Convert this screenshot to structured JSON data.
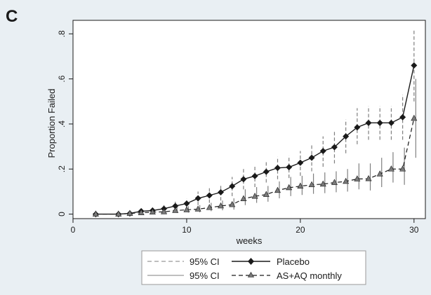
{
  "panel_label": "C",
  "colors": {
    "background": "#e9eff3",
    "plot_background": "#ffffff",
    "line": "#1a1a1a",
    "ci": "#7f7f7f"
  },
  "legend": {
    "entries": [
      {
        "label": "95% CI",
        "style": "dashed-gray"
      },
      {
        "label": "Placebo",
        "style": "solid-diamond"
      },
      {
        "label": "95% CI",
        "style": "solid-gray"
      },
      {
        "label": "AS+AQ monthly",
        "style": "dashed-triangle"
      }
    ]
  },
  "chart_data": {
    "type": "line",
    "title": "",
    "xlabel": "weeks",
    "ylabel": "Proportion Failed",
    "xlim": [
      0,
      31
    ],
    "ylim": [
      -0.02,
      0.86
    ],
    "xticks": [
      0,
      10,
      20,
      30
    ],
    "xtick_labels": [
      "0",
      "10",
      "20",
      "30"
    ],
    "yticks": [
      0,
      0.2,
      0.4,
      0.6,
      0.8
    ],
    "ytick_labels": [
      "0",
      ".2",
      ".4",
      ".6",
      ".8"
    ],
    "grid": false,
    "legend_position": "bottom",
    "series": [
      {
        "name": "Placebo",
        "marker": "diamond",
        "line": "solid",
        "x": [
          2,
          4,
          5,
          6,
          7,
          8,
          9,
          10,
          11,
          12,
          13,
          14,
          15,
          16,
          17,
          18,
          19,
          20,
          21,
          22,
          23,
          24,
          25,
          26,
          27,
          28,
          29,
          30
        ],
        "y": [
          0,
          0,
          0.003,
          0.013,
          0.016,
          0.024,
          0.036,
          0.047,
          0.07,
          0.083,
          0.097,
          0.124,
          0.155,
          0.169,
          0.188,
          0.205,
          0.208,
          0.228,
          0.25,
          0.28,
          0.297,
          0.345,
          0.385,
          0.405,
          0.405,
          0.405,
          0.43,
          0.66
        ],
        "ci_x": [
          6,
          7,
          8,
          9,
          10,
          11,
          12,
          13,
          14,
          15,
          16,
          17,
          18,
          19,
          20,
          21,
          22,
          23,
          24,
          25,
          26,
          27,
          28,
          29,
          30
        ],
        "ci_lower": [
          0.003,
          0.005,
          0.01,
          0.015,
          0.02,
          0.04,
          0.05,
          0.06,
          0.08,
          0.11,
          0.12,
          0.14,
          0.155,
          0.16,
          0.17,
          0.19,
          0.21,
          0.225,
          0.27,
          0.31,
          0.33,
          0.33,
          0.33,
          0.33,
          0.5
        ],
        "ci_upper": [
          0.025,
          0.03,
          0.04,
          0.055,
          0.07,
          0.1,
          0.115,
          0.13,
          0.165,
          0.2,
          0.215,
          0.235,
          0.255,
          0.26,
          0.28,
          0.31,
          0.345,
          0.365,
          0.42,
          0.47,
          0.48,
          0.48,
          0.48,
          0.53,
          0.82
        ]
      },
      {
        "name": "AS+AQ monthly",
        "marker": "triangle",
        "line": "dashed",
        "x": [
          2,
          4,
          5,
          6,
          7,
          8,
          9,
          10,
          11,
          12,
          13,
          14,
          15,
          16,
          17,
          18,
          19,
          20,
          21,
          22,
          23,
          24,
          25,
          26,
          27,
          28,
          29,
          30
        ],
        "y": [
          0,
          0,
          0.003,
          0.006,
          0.009,
          0.01,
          0.016,
          0.019,
          0.022,
          0.029,
          0.036,
          0.042,
          0.068,
          0.079,
          0.087,
          0.105,
          0.117,
          0.124,
          0.13,
          0.133,
          0.14,
          0.145,
          0.156,
          0.157,
          0.178,
          0.2,
          0.2,
          0.425
        ],
        "ci_x": [
          9,
          10,
          11,
          12,
          13,
          14,
          15,
          16,
          17,
          18,
          19,
          20,
          21,
          22,
          23,
          24,
          25,
          26,
          27,
          28,
          29,
          30
        ],
        "ci_lower": [
          0.005,
          0.007,
          0.008,
          0.013,
          0.017,
          0.02,
          0.04,
          0.05,
          0.055,
          0.07,
          0.08,
          0.085,
          0.09,
          0.093,
          0.097,
          0.1,
          0.11,
          0.105,
          0.12,
          0.14,
          0.13,
          0.25
        ],
        "ci_upper": [
          0.03,
          0.035,
          0.04,
          0.05,
          0.06,
          0.07,
          0.11,
          0.12,
          0.125,
          0.145,
          0.165,
          0.17,
          0.18,
          0.185,
          0.19,
          0.2,
          0.225,
          0.225,
          0.25,
          0.275,
          0.295,
          0.6
        ]
      }
    ]
  }
}
